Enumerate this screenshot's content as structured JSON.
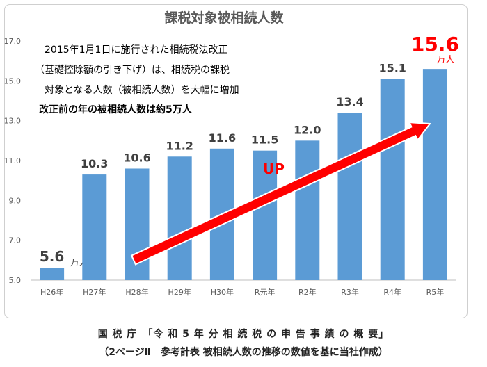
{
  "chart_data": {
    "type": "bar",
    "title": "課税対象被相続人数",
    "categories": [
      "H26年",
      "H27年",
      "H28年",
      "H29年",
      "H30年",
      "R元年",
      "R2年",
      "R3年",
      "R4年",
      "R5年"
    ],
    "values": [
      5.6,
      10.3,
      10.6,
      11.2,
      11.6,
      11.5,
      12.0,
      13.4,
      15.1,
      15.6
    ],
    "value_labels": [
      "5.6",
      "10.3",
      "10.6",
      "11.2",
      "11.6",
      "11.5",
      "12.0",
      "13.4",
      "15.1",
      "15.6"
    ],
    "unit": "万人",
    "ylim": [
      5.0,
      17.0
    ],
    "yticks": [
      "5.0",
      "7.0",
      "9.0",
      "11.0",
      "13.0",
      "15.0",
      "17.0"
    ],
    "grid": false,
    "bar_color": "#5b9bd5",
    "annotation_lines": [
      "2015年1月1日に施行された相続税法改正",
      "（基礎控除額の引き下げ）は、相続税の課税",
      "対象となる人数（被相続人数）を大幅に増加"
    ],
    "annotation_bold": "改正前の年の被相続人数は約5万人",
    "arrow_label": "UP",
    "arrow_color": "#ff0000"
  },
  "source": {
    "line1": "国 税 庁　「令 和 5 年 分 相 続 税 の 申 告 事 績 の 概 要」",
    "line2": "（2ページⅡ　参考計表 被相続人数の推移の数値を基に当社作成）"
  }
}
